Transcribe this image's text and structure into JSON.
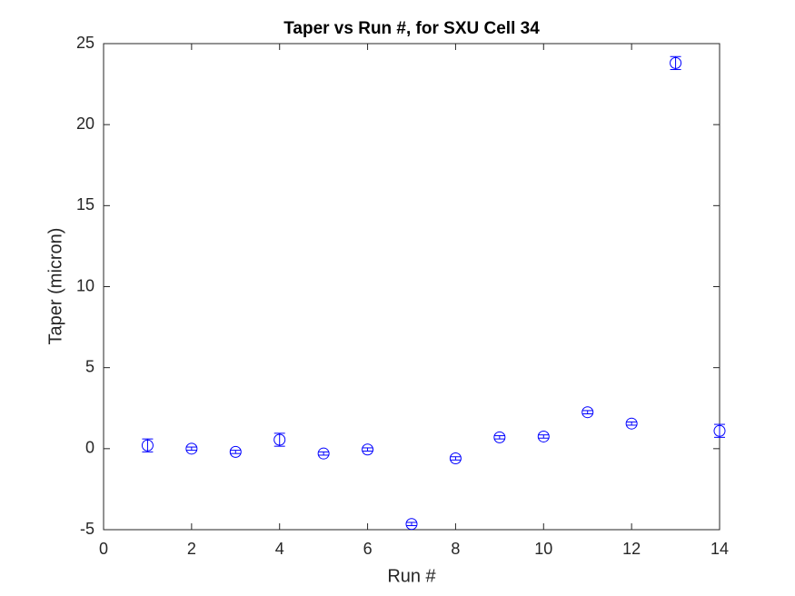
{
  "chart_data": {
    "type": "errorbar",
    "title": "Taper vs Run #, for SXU Cell 34",
    "x_label": "Run #",
    "y_label": "Taper (micron)",
    "x": [
      1,
      2,
      3,
      4,
      5,
      6,
      7,
      8,
      9,
      10,
      11,
      12,
      13,
      14
    ],
    "series": [
      {
        "color": "#0000ff",
        "values": [
          0.2,
          0.0,
          -0.2,
          0.55,
          -0.3,
          -0.05,
          -4.65,
          -0.6,
          0.7,
          0.75,
          2.25,
          1.55,
          23.8,
          1.1
        ],
        "errors": [
          0.4,
          0.1,
          0.1,
          0.4,
          0.1,
          0.1,
          0.1,
          0.1,
          0.1,
          0.1,
          0.1,
          0.1,
          0.4,
          0.4
        ]
      }
    ],
    "xlim": [
      0,
      14
    ],
    "xticks": [
      0,
      2,
      4,
      6,
      8,
      10,
      12,
      14
    ],
    "ylim": [
      -5,
      25
    ],
    "yticks": [
      -5,
      0,
      5,
      10,
      15,
      20,
      25
    ]
  }
}
